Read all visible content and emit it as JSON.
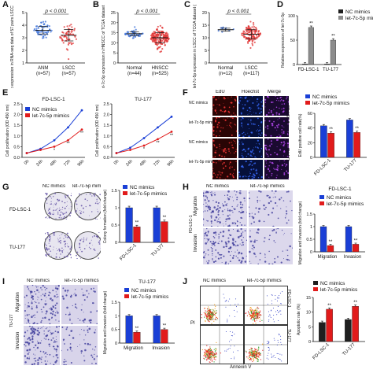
{
  "colors": {
    "nc": "#1f1f1f",
    "let7c": "#8c8c8c",
    "blue": "#1a3fd6",
    "red": "#e11b1b",
    "scatter_blue": "#3a6fd8",
    "scatter_red": "#e03030"
  },
  "panels": {
    "A": {
      "label": "A"
    },
    "B": {
      "label": "B"
    },
    "C": {
      "label": "C"
    },
    "D": {
      "label": "D"
    },
    "E": {
      "label": "E"
    },
    "F": {
      "label": "F"
    },
    "G": {
      "label": "G"
    },
    "H": {
      "label": "H"
    },
    "I": {
      "label": "I"
    },
    "J": {
      "label": "J"
    }
  },
  "chart_data": [
    {
      "id": "A",
      "type": "scatter",
      "annotation": "p < 0.001",
      "ylabel": "let-7c-5p expression in RNA-seq data of 57 pairs LSCC tissues(log2RPM)",
      "categories": [
        "ANM\n(n=57)",
        "LSCC\n(n=57)"
      ],
      "ylim": [
        1,
        5
      ],
      "yticks": [
        1,
        2,
        3,
        4,
        5
      ],
      "groups": [
        {
          "name": "ANM",
          "mean": 3.6,
          "sd": 0.3,
          "n": 57
        },
        {
          "name": "LSCC",
          "mean": 3.2,
          "sd": 0.45,
          "n": 57
        }
      ]
    },
    {
      "id": "B",
      "type": "scatter",
      "annotation": "p < 0.001",
      "ylabel": "let-7c-5p expression in HNSCC of TCGA dataset (log2RPM)",
      "categories": [
        "Normal\n(n=44)",
        "HNSCC\n(n=525)"
      ],
      "ylim": [
        0,
        25
      ],
      "yticks": [
        0,
        5,
        10,
        15,
        20,
        25
      ],
      "groups": [
        {
          "name": "Normal",
          "mean": 14.5,
          "sd": 1.0,
          "n": 44
        },
        {
          "name": "HNSCC",
          "mean": 12.5,
          "sd": 2.6,
          "n": 525
        }
      ]
    },
    {
      "id": "C",
      "type": "scatter",
      "annotation": "p < 0.001",
      "ylabel": "let-7c-5p expression in LSCC of TCGA dataset (log2RPM)",
      "categories": [
        "Normal\n(n=12)",
        "LSCC\n(n=117)"
      ],
      "ylim": [
        0,
        20
      ],
      "yticks": [
        0,
        5,
        10,
        15,
        20
      ],
      "groups": [
        {
          "name": "Normal",
          "mean": 13.2,
          "sd": 0.6,
          "n": 12
        },
        {
          "name": "LSCC",
          "mean": 11.4,
          "sd": 1.8,
          "n": 117
        }
      ]
    },
    {
      "id": "D",
      "type": "bar",
      "ylabel": "Relative expression of let-7c-5p",
      "categories": [
        "FD-LSC-1",
        "TU-177"
      ],
      "series": [
        {
          "name": "NC mimics",
          "values": [
            1,
            1
          ]
        },
        {
          "name": "let-7c-5p mimics",
          "values": [
            76,
            50
          ]
        }
      ],
      "ylim": [
        0,
        100
      ],
      "yticks": [
        0,
        50,
        100
      ],
      "sig": "**"
    },
    {
      "id": "E1",
      "type": "line",
      "title": "FD-LSC-1",
      "ylabel": "Cell proliferation (OD 450 nm)",
      "categories": [
        "0h",
        "24h",
        "48h",
        "72h",
        "96h"
      ],
      "series": [
        {
          "name": "NC mimics",
          "values": [
            0.2,
            0.4,
            0.8,
            1.4,
            2.2
          ]
        },
        {
          "name": "let-7c-5p mimics",
          "values": [
            0.2,
            0.35,
            0.5,
            0.8,
            1.3
          ]
        }
      ],
      "ylim": [
        0,
        2.5
      ],
      "yticks": [
        0,
        0.5,
        1,
        1.5,
        2,
        2.5
      ]
    },
    {
      "id": "E2",
      "type": "line",
      "title": "TU-177",
      "ylabel": "Cell proliferation (OD 450 nm)",
      "categories": [
        "0h",
        "24h",
        "48h",
        "72h",
        "96h"
      ],
      "series": [
        {
          "name": "NC mimics",
          "values": [
            0.2,
            0.45,
            0.9,
            1.4,
            1.9
          ]
        },
        {
          "name": "let-7c-5p mimics",
          "values": [
            0.2,
            0.35,
            0.55,
            0.85,
            1.2
          ]
        }
      ],
      "ylim": [
        0,
        2.5
      ],
      "yticks": [
        0,
        0.5,
        1,
        1.5,
        2,
        2.5
      ]
    },
    {
      "id": "F",
      "type": "bar",
      "ylabel": "EdU positive cell rate(%)",
      "categories": [
        "FD-LSC-1",
        "TU-177"
      ],
      "series": [
        {
          "name": "NC mimics",
          "values": [
            43,
            51
          ]
        },
        {
          "name": "let-7c-5p mimics",
          "values": [
            33,
            34
          ]
        }
      ],
      "ylim": [
        0,
        60
      ],
      "yticks": [
        0,
        20,
        40,
        60
      ],
      "sig": "**"
    },
    {
      "id": "G",
      "type": "bar",
      "ylabel": "Colony formation (fold change)",
      "categories": [
        "FD-LSC-1",
        "TU-177"
      ],
      "series": [
        {
          "name": "NC mimics",
          "values": [
            1.0,
            1.0
          ]
        },
        {
          "name": "let-7c-5p mimics",
          "values": [
            0.45,
            0.6
          ]
        }
      ],
      "ylim": [
        0,
        1.5
      ],
      "yticks": [
        0,
        0.5,
        1.0,
        1.5
      ],
      "sig": "**"
    },
    {
      "id": "H",
      "type": "bar",
      "title": "FD-LSC-1",
      "ylabel": "Migration and invasion (fold change)",
      "categories": [
        "Migration",
        "Invasion"
      ],
      "series": [
        {
          "name": "NC mimics",
          "values": [
            1.0,
            1.0
          ]
        },
        {
          "name": "let-7c-5p mimics",
          "values": [
            0.25,
            0.3
          ]
        }
      ],
      "ylim": [
        0,
        1.5
      ],
      "yticks": [
        0,
        0.5,
        1.0,
        1.5
      ],
      "sig": "**"
    },
    {
      "id": "I",
      "type": "bar",
      "title": "TU-177",
      "ylabel": "Migration and invasion (fold change)",
      "categories": [
        "Migration",
        "Invasion"
      ],
      "series": [
        {
          "name": "NC mimics",
          "values": [
            1.0,
            1.0
          ]
        },
        {
          "name": "let-7c-5p mimics",
          "values": [
            0.4,
            0.5
          ]
        }
      ],
      "ylim": [
        0,
        1.5
      ],
      "yticks": [
        0,
        0.5,
        1.0,
        1.5
      ],
      "sig": "**"
    },
    {
      "id": "J",
      "type": "bar",
      "ylabel": "Apoptotic rate (%)",
      "categories": [
        "FD-LSC-1",
        "TU-177"
      ],
      "series": [
        {
          "name": "NC mimics",
          "values": [
            6.5,
            7.5
          ]
        },
        {
          "name": "let-7c-5p mimics",
          "values": [
            11,
            12
          ]
        }
      ],
      "ylim": [
        0,
        15
      ],
      "yticks": [
        0,
        5,
        10,
        15
      ],
      "sig": "**"
    }
  ],
  "micrographs": {
    "F": {
      "cols": [
        "EdU",
        "Hoechst",
        "Merge"
      ],
      "rows": [
        "NC mimics",
        "let-7c-5p mimics",
        "NC mimics",
        "let-7c-5p mimics"
      ],
      "side_labels": [
        "FD-LSC-1",
        "TU-177"
      ]
    },
    "G": {
      "cols": [
        "NC mimics",
        "let-7c-5p mimics"
      ],
      "rows": [
        "FD-LSC-1",
        "TU-177"
      ]
    },
    "H": {
      "cols": [
        "NC mimics",
        "let-7c-5p mimics"
      ],
      "rows": [
        "Migration",
        "Invasion"
      ],
      "side": "FD-LSC-1"
    },
    "I": {
      "cols": [
        "NC mimics",
        "let-7c-5p mimics"
      ],
      "rows": [
        "Migration",
        "Invasion"
      ],
      "side": "TU-177"
    },
    "J": {
      "cols": [
        "NC mimics",
        "let-7c-5p mimics"
      ],
      "side_labels": [
        "FD-LSC-1",
        "TU-177"
      ],
      "xlabel": "Annexin V",
      "ylabel": "PI"
    }
  },
  "legend": {
    "nc": "NC mimics",
    "let7c": "let-7c-5p mimics"
  }
}
